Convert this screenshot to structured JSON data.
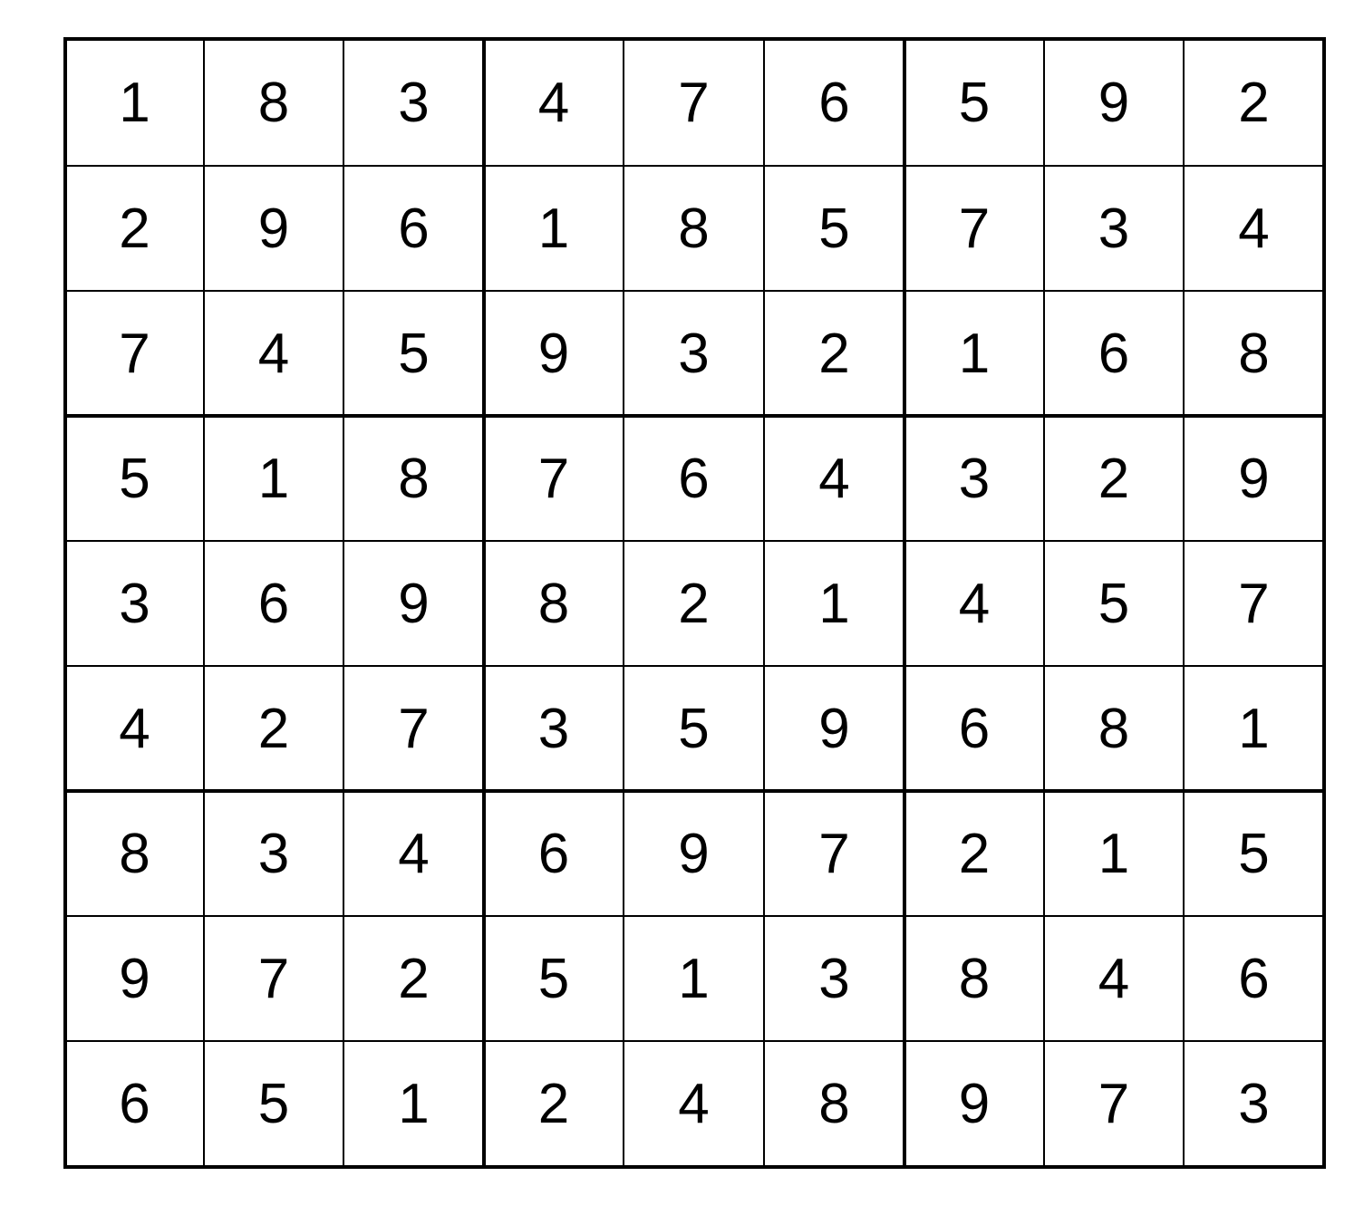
{
  "puzzle": {
    "grid": [
      [
        1,
        8,
        3,
        4,
        7,
        6,
        5,
        9,
        2
      ],
      [
        2,
        9,
        6,
        1,
        8,
        5,
        7,
        3,
        4
      ],
      [
        7,
        4,
        5,
        9,
        3,
        2,
        1,
        6,
        8
      ],
      [
        5,
        1,
        8,
        7,
        6,
        4,
        3,
        2,
        9
      ],
      [
        3,
        6,
        9,
        8,
        2,
        1,
        4,
        5,
        7
      ],
      [
        4,
        2,
        7,
        3,
        5,
        9,
        6,
        8,
        1
      ],
      [
        8,
        3,
        4,
        6,
        9,
        7,
        2,
        1,
        5
      ],
      [
        9,
        7,
        2,
        5,
        1,
        3,
        8,
        4,
        6
      ],
      [
        6,
        5,
        1,
        2,
        4,
        8,
        9,
        7,
        3
      ]
    ]
  }
}
